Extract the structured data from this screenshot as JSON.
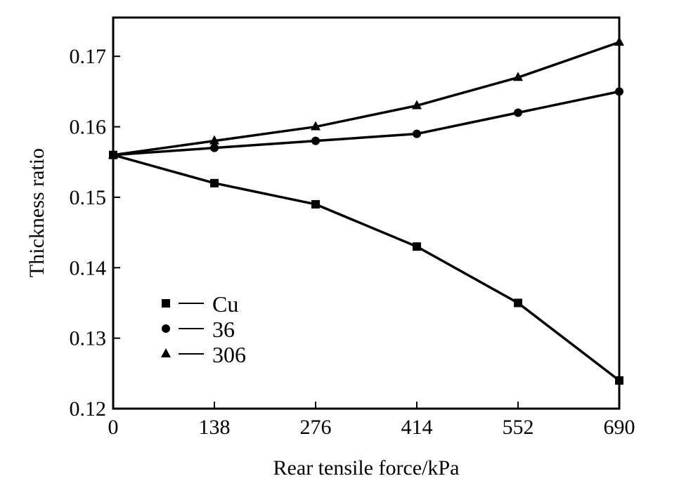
{
  "chart_data": {
    "type": "line",
    "title": "",
    "xlabel": "Rear tensile force/kPa",
    "ylabel": "Thickness ratio",
    "x": [
      0,
      138,
      276,
      414,
      552,
      690
    ],
    "xticks": [
      "0",
      "138",
      "276",
      "414",
      "552",
      "690"
    ],
    "yticks": [
      "0.12",
      "0.13",
      "0.14",
      "0.15",
      "0.16",
      "0.17"
    ],
    "xlim": [
      0,
      690
    ],
    "ylim": [
      0.12,
      0.1755
    ],
    "grid": false,
    "legend_position": "bottom-left",
    "series": [
      {
        "name": "Cu",
        "marker": "square",
        "values": [
          0.156,
          0.152,
          0.149,
          0.143,
          0.135,
          0.124
        ]
      },
      {
        "name": "36",
        "marker": "circle",
        "values": [
          0.156,
          0.157,
          0.158,
          0.159,
          0.162,
          0.165
        ]
      },
      {
        "name": "306",
        "marker": "triangle",
        "values": [
          0.156,
          0.158,
          0.16,
          0.163,
          0.167,
          0.172
        ]
      }
    ],
    "colors": {
      "line": "#000000",
      "background": "#ffffff"
    }
  }
}
